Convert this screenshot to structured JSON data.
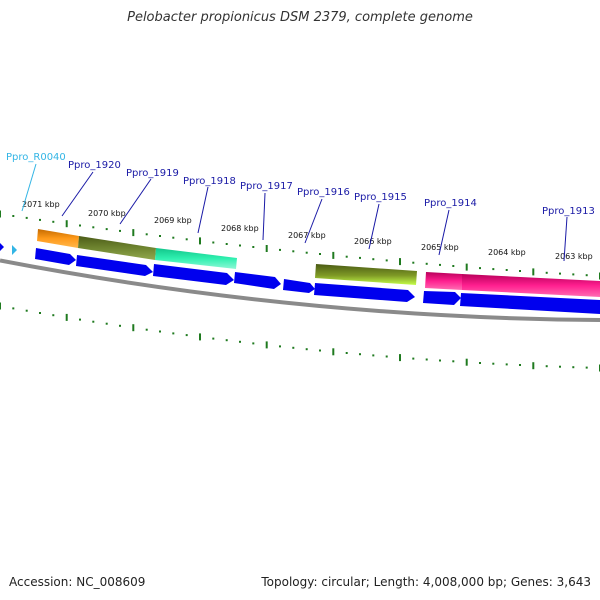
{
  "title": "Pelobacter propionicus DSM 2379, complete genome",
  "footer": {
    "accession": "Accession: NC_008609",
    "summary": "Topology: circular; Length: 4,008,000 bp; Genes: 3,643"
  },
  "colors": {
    "cds": "#0000ee",
    "backbone": "#8a8a8a",
    "tick": "#1f7a1f",
    "gene_label": "#1a1aa6",
    "rna_label": "#33b5e5",
    "rna_arrow": "#33b5e5"
  },
  "kbp_labels": [
    "2071 kbp",
    "2070 kbp",
    "2069 kbp",
    "2068 kbp",
    "2067 kbp",
    "2066 kbp",
    "2065 kbp",
    "2064 kbp",
    "2063 kbp"
  ],
  "gene_labels": [
    "Ppro_R0040",
    "Ppro_1920",
    "Ppro_1919",
    "Ppro_1918",
    "Ppro_1917",
    "Ppro_1916",
    "Ppro_1915",
    "Ppro_1914",
    "Ppro_1913"
  ]
}
